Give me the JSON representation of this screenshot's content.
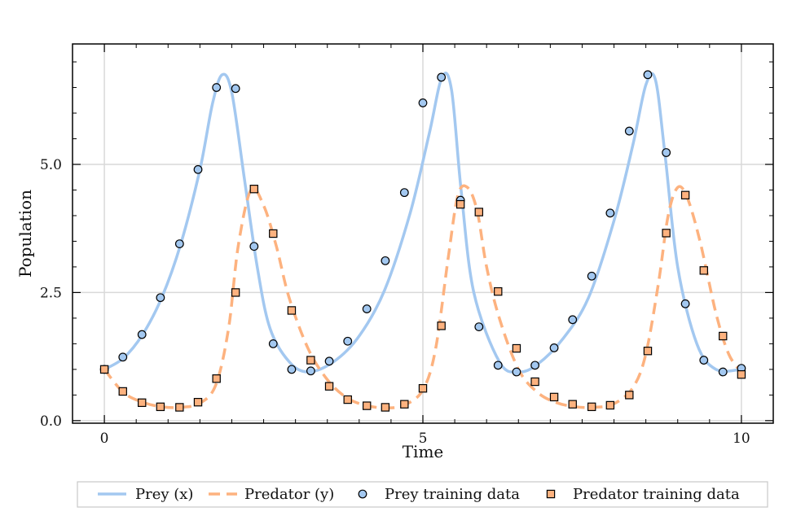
{
  "chart_data": {
    "type": "line",
    "title": "",
    "xlabel": "Time",
    "ylabel": "Population",
    "xlim": [
      -0.5,
      10.5
    ],
    "ylim": [
      -0.05,
      7.35
    ],
    "xticks": [
      0,
      5,
      10
    ],
    "xtick_labels": [
      "0",
      "5",
      "10"
    ],
    "yticks": [
      0.0,
      2.5,
      5.0
    ],
    "ytick_labels": [
      "0.0",
      "2.5",
      "5.0"
    ],
    "grid": true,
    "legend_position": "bottom",
    "colors": {
      "prey": "#a3c8f0",
      "predator": "#fdb27f",
      "marker_edge": "#000000",
      "grid": "#d9d9d9"
    },
    "series": [
      {
        "name": "Prey (x)",
        "kind": "line",
        "style": "solid",
        "x": [
          0,
          0.3,
          0.6,
          0.9,
          1.2,
          1.5,
          1.7,
          1.85,
          2.0,
          2.2,
          2.4,
          2.6,
          2.9,
          3.2,
          3.6,
          4.0,
          4.4,
          4.8,
          5.1,
          5.3,
          5.45,
          5.6,
          5.8,
          6.2,
          6.5,
          6.8,
          7.2,
          7.6,
          8.0,
          8.3,
          8.5,
          8.65,
          8.8,
          9.0,
          9.3,
          9.6,
          10.0
        ],
        "y": [
          1.0,
          1.22,
          1.68,
          2.4,
          3.45,
          4.9,
          6.2,
          6.75,
          6.4,
          4.7,
          3.0,
          1.8,
          1.15,
          0.95,
          1.15,
          1.65,
          2.55,
          4.05,
          5.6,
          6.7,
          6.45,
          4.5,
          2.5,
          1.15,
          0.95,
          1.1,
          1.6,
          2.4,
          3.9,
          5.4,
          6.55,
          6.65,
          5.2,
          3.0,
          1.5,
          1.0,
          1.0
        ]
      },
      {
        "name": "Predator (y)",
        "kind": "line",
        "style": "dashed",
        "x": [
          0,
          0.3,
          0.6,
          0.9,
          1.2,
          1.5,
          1.75,
          1.95,
          2.1,
          2.3,
          2.5,
          2.7,
          2.9,
          3.2,
          3.5,
          3.8,
          4.1,
          4.4,
          4.7,
          5.0,
          5.2,
          5.4,
          5.55,
          5.7,
          5.85,
          6.0,
          6.2,
          6.5,
          6.8,
          7.1,
          7.4,
          7.7,
          8.0,
          8.3,
          8.5,
          8.7,
          8.85,
          9.0,
          9.15,
          9.35,
          9.6,
          9.8,
          10.0
        ],
        "y": [
          1.0,
          0.55,
          0.36,
          0.27,
          0.26,
          0.34,
          0.7,
          1.8,
          3.4,
          4.5,
          4.2,
          3.4,
          2.4,
          1.4,
          0.8,
          0.45,
          0.3,
          0.25,
          0.3,
          0.6,
          1.4,
          3.2,
          4.4,
          4.55,
          4.1,
          3.0,
          2.0,
          1.0,
          0.55,
          0.35,
          0.27,
          0.26,
          0.33,
          0.65,
          1.3,
          2.7,
          4.0,
          4.55,
          4.35,
          3.5,
          2.1,
          1.3,
          0.95
        ]
      },
      {
        "name": "Prey training data",
        "kind": "scatter",
        "marker": "circle",
        "x": [
          0.0,
          0.29,
          0.59,
          0.88,
          1.18,
          1.47,
          1.76,
          2.06,
          2.35,
          2.65,
          2.94,
          3.24,
          3.53,
          3.82,
          4.12,
          4.41,
          4.71,
          5.0,
          5.29,
          5.59,
          5.88,
          6.18,
          6.47,
          6.76,
          7.06,
          7.35,
          7.65,
          7.94,
          8.24,
          8.53,
          8.82,
          9.12,
          9.41,
          9.71,
          10.0
        ],
        "y": [
          1.0,
          1.24,
          1.68,
          2.4,
          3.45,
          4.9,
          6.5,
          6.48,
          3.4,
          1.5,
          1.0,
          0.97,
          1.16,
          1.55,
          2.18,
          3.12,
          4.45,
          6.2,
          6.7,
          4.3,
          1.83,
          1.08,
          0.95,
          1.08,
          1.42,
          1.97,
          2.82,
          4.05,
          5.65,
          6.75,
          5.23,
          2.28,
          1.18,
          0.95,
          1.02
        ]
      },
      {
        "name": "Predator training data",
        "kind": "scatter",
        "marker": "square",
        "x": [
          0.0,
          0.29,
          0.59,
          0.88,
          1.18,
          1.47,
          1.76,
          2.06,
          2.35,
          2.65,
          2.94,
          3.24,
          3.53,
          3.82,
          4.12,
          4.41,
          4.71,
          5.0,
          5.29,
          5.59,
          5.88,
          6.18,
          6.47,
          6.76,
          7.06,
          7.35,
          7.65,
          7.94,
          8.24,
          8.53,
          8.82,
          9.12,
          9.41,
          9.71,
          10.0
        ],
        "y": [
          1.0,
          0.57,
          0.35,
          0.27,
          0.26,
          0.36,
          0.82,
          2.5,
          4.52,
          3.65,
          2.15,
          1.18,
          0.67,
          0.41,
          0.29,
          0.26,
          0.32,
          0.63,
          1.85,
          4.22,
          4.07,
          2.52,
          1.41,
          0.76,
          0.46,
          0.32,
          0.27,
          0.3,
          0.5,
          1.36,
          3.66,
          4.4,
          2.93,
          1.65,
          0.9
        ]
      }
    ],
    "legend": [
      {
        "label": "Prey (x)",
        "key": "prey",
        "type": "line"
      },
      {
        "label": "Predator (y)",
        "key": "predator",
        "type": "dashed"
      },
      {
        "label": "Prey training data",
        "key": "prey",
        "type": "circle"
      },
      {
        "label": "Predator training data",
        "key": "predator",
        "type": "square"
      }
    ]
  }
}
